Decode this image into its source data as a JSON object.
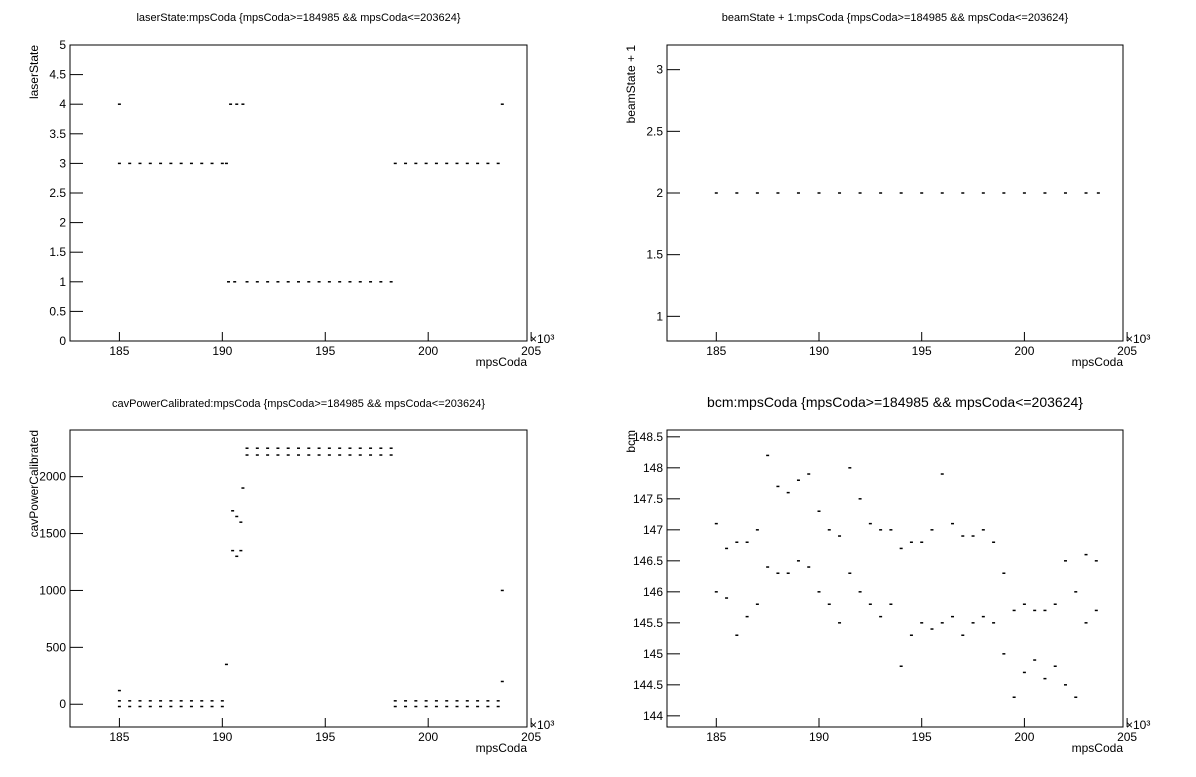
{
  "chart_data": [
    {
      "type": "scatter",
      "title": "laserState:mpsCoda {mpsCoda>=184985 && mpsCoda<=203624}",
      "xlabel": "mpsCoda",
      "ylabel": "laserState",
      "x_multiplier": "×10³",
      "color": "#000000",
      "xlim": [
        182.6,
        204.8
      ],
      "ylim": [
        0,
        5
      ],
      "xticks": [
        185,
        190,
        195,
        200,
        205
      ],
      "yticks": [
        0,
        0.5,
        1,
        1.5,
        2,
        2.5,
        3,
        3.5,
        4,
        4.5,
        5
      ],
      "x": [
        185,
        185.5,
        186,
        186.5,
        187,
        187.5,
        188,
        188.5,
        189,
        189.5,
        190,
        190.2,
        185,
        190.4,
        190.7,
        191,
        203.6,
        190.3,
        190.6,
        191.2,
        191.7,
        192.2,
        192.7,
        193.2,
        193.7,
        194.2,
        194.7,
        195.2,
        195.7,
        196.2,
        196.7,
        197.2,
        197.7,
        198.2,
        198.4,
        198.9,
        199.4,
        199.9,
        200.4,
        200.9,
        201.4,
        201.9,
        202.4,
        202.9,
        203.4
      ],
      "values": [
        3,
        3,
        3,
        3,
        3,
        3,
        3,
        3,
        3,
        3,
        3,
        3,
        4,
        4,
        4,
        4,
        4,
        1,
        1,
        1,
        1,
        1,
        1,
        1,
        1,
        1,
        1,
        1,
        1,
        1,
        1,
        1,
        1,
        1,
        3,
        3,
        3,
        3,
        3,
        3,
        3,
        3,
        3,
        3,
        3
      ]
    },
    {
      "type": "scatter",
      "title": "beamState + 1:mpsCoda {mpsCoda>=184985 && mpsCoda<=203624}",
      "xlabel": "mpsCoda",
      "ylabel": "beamState + 1",
      "x_multiplier": "×10³",
      "color": "#000000",
      "xlim": [
        182.6,
        204.8
      ],
      "ylim": [
        0.8,
        3.2
      ],
      "xticks": [
        185,
        190,
        195,
        200,
        205
      ],
      "yticks": [
        1,
        1.5,
        2,
        2.5,
        3
      ],
      "x": [
        185,
        186,
        187,
        188,
        189,
        190,
        191,
        192,
        193,
        194,
        195,
        196,
        197,
        198,
        199,
        200,
        201,
        202,
        203,
        203.6
      ],
      "values": [
        2,
        2,
        2,
        2,
        2,
        2,
        2,
        2,
        2,
        2,
        2,
        2,
        2,
        2,
        2,
        2,
        2,
        2,
        2,
        2
      ]
    },
    {
      "type": "scatter",
      "title": "cavPowerCalibrated:mpsCoda {mpsCoda>=184985 && mpsCoda<=203624}",
      "xlabel": "mpsCoda",
      "ylabel": "cavPowerCalibrated",
      "x_multiplier": "×10³",
      "color": "#000000",
      "xlim": [
        182.6,
        204.8
      ],
      "ylim": [
        -200,
        2410
      ],
      "xticks": [
        185,
        190,
        195,
        200,
        205
      ],
      "yticks": [
        0,
        500,
        1000,
        1500,
        2000
      ],
      "x": [
        185,
        185.5,
        186,
        186.5,
        187,
        187.5,
        188,
        188.5,
        189,
        189.5,
        190,
        185,
        185.5,
        186,
        186.5,
        187,
        187.5,
        188,
        188.5,
        189,
        189.5,
        190,
        185,
        190.2,
        190.5,
        190.5,
        190.7,
        190.7,
        190.9,
        190.9,
        191.0,
        191.2,
        191.7,
        192.2,
        192.7,
        193.2,
        193.7,
        194.2,
        194.7,
        195.2,
        195.7,
        196.2,
        196.7,
        197.2,
        197.7,
        198.2,
        191.2,
        191.7,
        192.2,
        192.7,
        193.2,
        193.7,
        194.2,
        194.7,
        195.2,
        195.7,
        196.2,
        196.7,
        197.2,
        197.7,
        198.2,
        198.4,
        198.9,
        199.4,
        199.9,
        200.4,
        200.9,
        201.4,
        201.9,
        202.4,
        202.9,
        203.4,
        198.4,
        198.9,
        199.4,
        199.9,
        200.4,
        200.9,
        201.4,
        201.9,
        202.4,
        202.9,
        203.4,
        203.6,
        203.6
      ],
      "values": [
        30,
        30,
        30,
        30,
        30,
        30,
        30,
        30,
        30,
        30,
        30,
        -20,
        -20,
        -20,
        -20,
        -20,
        -20,
        -20,
        -20,
        -20,
        -20,
        -20,
        120,
        350,
        1350,
        1700,
        1300,
        1650,
        1350,
        1600,
        1900,
        2250,
        2250,
        2250,
        2250,
        2250,
        2250,
        2250,
        2250,
        2250,
        2250,
        2250,
        2250,
        2250,
        2250,
        2250,
        2190,
        2190,
        2190,
        2190,
        2190,
        2190,
        2190,
        2190,
        2190,
        2190,
        2190,
        2190,
        2190,
        2190,
        2190,
        30,
        30,
        30,
        30,
        30,
        30,
        30,
        30,
        30,
        30,
        30,
        -20,
        -20,
        -20,
        -20,
        -20,
        -20,
        -20,
        -20,
        -20,
        -20,
        -20,
        1000,
        200
      ]
    },
    {
      "type": "scatter",
      "title": "bcm:mpsCoda {mpsCoda>=184985 && mpsCoda<=203624}",
      "xlabel": "mpsCoda",
      "ylabel": "bcm",
      "x_multiplier": "×10³",
      "color": "#000000",
      "xlim": [
        182.6,
        204.8
      ],
      "ylim": [
        143.82,
        148.61
      ],
      "xticks": [
        185,
        190,
        195,
        200,
        205
      ],
      "yticks": [
        144,
        144.5,
        145,
        145.5,
        146,
        146.5,
        147,
        147.5,
        148,
        148.5
      ],
      "x": [
        185,
        185.5,
        186,
        186.5,
        187,
        187.5,
        188,
        188.5,
        189,
        189.5,
        190,
        190.5,
        191,
        191.5,
        192,
        192.5,
        193,
        193.5,
        194,
        194.5,
        195,
        195.5,
        196,
        196.5,
        197,
        197.5,
        198,
        198.5,
        199,
        199.5,
        200,
        200.5,
        201,
        201.5,
        202,
        202.5,
        203,
        203.5,
        185,
        185.5,
        186,
        186.5,
        187,
        187.5,
        188,
        188.5,
        189,
        189.5,
        190,
        190.5,
        191,
        191.5,
        192,
        192.5,
        193,
        193.5,
        194,
        194.5,
        195,
        195.5,
        196,
        196.5,
        197,
        197.5,
        198,
        198.5,
        199,
        199.5,
        200,
        200.5,
        201,
        201.5,
        202,
        202.5,
        203,
        203.5
      ],
      "values": [
        146.0,
        145.9,
        145.3,
        145.6,
        145.8,
        146.4,
        146.3,
        146.3,
        146.5,
        146.4,
        146.0,
        145.8,
        145.5,
        146.3,
        146.0,
        145.8,
        145.6,
        145.8,
        144.8,
        145.3,
        145.5,
        145.4,
        145.5,
        145.6,
        145.3,
        145.5,
        145.6,
        145.5,
        145.0,
        144.3,
        144.7,
        144.9,
        144.6,
        144.8,
        144.5,
        144.3,
        145.5,
        145.7,
        147.1,
        146.7,
        146.8,
        146.8,
        147.0,
        148.2,
        147.7,
        147.6,
        147.8,
        147.9,
        147.3,
        147.0,
        146.9,
        148.0,
        147.5,
        147.1,
        147.0,
        147.0,
        146.7,
        146.8,
        146.8,
        147.0,
        147.9,
        147.1,
        146.9,
        146.9,
        147.0,
        146.8,
        146.3,
        145.7,
        145.8,
        145.7,
        145.7,
        145.8,
        146.5,
        146.0,
        146.6,
        146.5
      ]
    }
  ]
}
